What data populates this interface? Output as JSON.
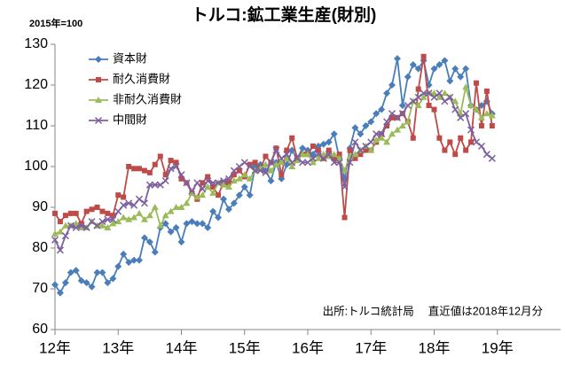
{
  "chart_data": {
    "type": "line",
    "title": "トルコ:鉱工業生産(財別)",
    "subtitle": "2015年=100",
    "annotation": "出所:トルコ統計局　 直近値は2018年12月分",
    "x": [
      12,
      12.083,
      12.167,
      12.25,
      12.333,
      12.417,
      12.5,
      12.583,
      12.667,
      12.75,
      12.833,
      12.917,
      13,
      13.083,
      13.167,
      13.25,
      13.333,
      13.417,
      13.5,
      13.583,
      13.667,
      13.75,
      13.833,
      13.917,
      14,
      14.083,
      14.167,
      14.25,
      14.333,
      14.417,
      14.5,
      14.583,
      14.667,
      14.75,
      14.833,
      14.917,
      15,
      15.083,
      15.167,
      15.25,
      15.333,
      15.417,
      15.5,
      15.583,
      15.667,
      15.75,
      15.833,
      15.917,
      16,
      16.083,
      16.167,
      16.25,
      16.333,
      16.417,
      16.5,
      16.583,
      16.667,
      16.75,
      16.833,
      16.917,
      17,
      17.083,
      17.167,
      17.25,
      17.333,
      17.417,
      17.5,
      17.583,
      17.667,
      17.75,
      17.833,
      17.917,
      18,
      18.083,
      18.167,
      18.25,
      18.333,
      18.417,
      18.5,
      18.583,
      18.667,
      18.75,
      18.833,
      18.917
    ],
    "series": [
      {
        "name": "資本財",
        "color": "#4a7ebb",
        "marker": "diamond",
        "values": [
          71,
          69,
          71.5,
          74,
          74.5,
          72,
          71.5,
          70.5,
          74,
          74,
          71.5,
          72.5,
          75.5,
          78.5,
          76.5,
          77,
          77,
          82.5,
          81.5,
          79,
          85,
          86,
          84,
          85,
          81.5,
          86,
          86.5,
          86,
          86,
          85,
          89,
          87.5,
          92,
          89.5,
          91,
          93,
          95,
          93,
          100,
          100.5,
          99,
          96.5,
          101,
          97,
          100.5,
          104,
          102,
          104.5,
          104,
          103,
          105,
          105.5,
          106,
          108,
          102,
          97,
          104.5,
          109.5,
          108,
          110,
          111,
          113,
          114,
          118,
          120,
          126.5,
          115,
          122,
          125,
          124,
          126,
          120,
          124,
          125,
          126,
          121,
          124,
          122,
          124,
          115,
          114,
          115,
          116,
          113
        ]
      },
      {
        "name": "耐久消費財",
        "color": "#be4b48",
        "marker": "square",
        "values": [
          88.5,
          86.5,
          88,
          88.5,
          88.5,
          86,
          89,
          89.5,
          90,
          89,
          88.5,
          88,
          93,
          92.5,
          100,
          99.5,
          99.5,
          99,
          98.5,
          100.5,
          102.5,
          98,
          101.5,
          101,
          97,
          96,
          93.5,
          92,
          96,
          97.5,
          95,
          93,
          96,
          96,
          98,
          99,
          97.5,
          100.5,
          101,
          99.5,
          102.5,
          101,
          104.5,
          98,
          104,
          107,
          102,
          103,
          103,
          105,
          104,
          102,
          104,
          102,
          103,
          87.5,
          104,
          102,
          103,
          104,
          104,
          106,
          108,
          110,
          112,
          112,
          113,
          111,
          107,
          119,
          127,
          115,
          114,
          107,
          104,
          106,
          103,
          107,
          104,
          106,
          120.5,
          110,
          118.5,
          110
        ]
      },
      {
        "name": "非耐久消費財",
        "color": "#9bbb59",
        "marker": "triangle",
        "values": [
          83.5,
          84,
          85.5,
          85.5,
          86,
          85,
          85,
          86.5,
          85.5,
          85.5,
          85,
          86,
          86.5,
          87.5,
          87,
          87.5,
          88.5,
          87,
          88,
          90,
          85.5,
          88,
          89,
          90,
          90,
          91,
          93.5,
          92.5,
          93,
          95,
          93.5,
          96,
          95.5,
          95,
          96.5,
          97,
          98,
          97,
          99,
          99.5,
          100.5,
          99,
          100.5,
          101,
          102,
          100,
          101.5,
          103,
          103,
          101,
          102,
          103,
          102.5,
          103,
          102,
          99,
          102.5,
          103,
          104,
          105,
          104,
          106.5,
          107,
          106,
          108,
          109,
          110,
          111,
          116,
          115,
          117,
          118,
          118,
          117,
          118,
          117,
          116,
          113,
          119.5,
          115,
          114,
          112,
          113,
          112.5
        ]
      },
      {
        "name": "中間財",
        "color": "#7d60a0",
        "marker": "x",
        "values": [
          82,
          79.5,
          83,
          85.5,
          85,
          85.5,
          85,
          86.5,
          85.5,
          86.5,
          87,
          87,
          89,
          90.5,
          91,
          90.5,
          92,
          91,
          95.5,
          95.5,
          95.5,
          96.5,
          99.5,
          100,
          98,
          96,
          94,
          96,
          94.5,
          96.5,
          96,
          96,
          96.5,
          97,
          99,
          100,
          101,
          100,
          99,
          99,
          98.5,
          101,
          104,
          102,
          103,
          101,
          102,
          101,
          101,
          102,
          103,
          102,
          103,
          101,
          101,
          95,
          101,
          106,
          104,
          105,
          106,
          108,
          108,
          111,
          113,
          112,
          113,
          115,
          116,
          117,
          118,
          118,
          117,
          118,
          116,
          117,
          114,
          112,
          113,
          109,
          106,
          105,
          103,
          102
        ]
      }
    ],
    "xlim": [
      12,
      20
    ],
    "xticks": [
      {
        "value": 12,
        "label": "12年"
      },
      {
        "value": 13,
        "label": "13年"
      },
      {
        "value": 14,
        "label": "14年"
      },
      {
        "value": 15,
        "label": "15年"
      },
      {
        "value": 16,
        "label": "16年"
      },
      {
        "value": 17,
        "label": "17年"
      },
      {
        "value": 18,
        "label": "18年"
      },
      {
        "value": 19,
        "label": "19年"
      }
    ],
    "ylim": [
      60,
      130
    ],
    "yticks": [
      60,
      70,
      80,
      90,
      100,
      110,
      120,
      130
    ],
    "grid": false,
    "legend": "upper-left"
  }
}
